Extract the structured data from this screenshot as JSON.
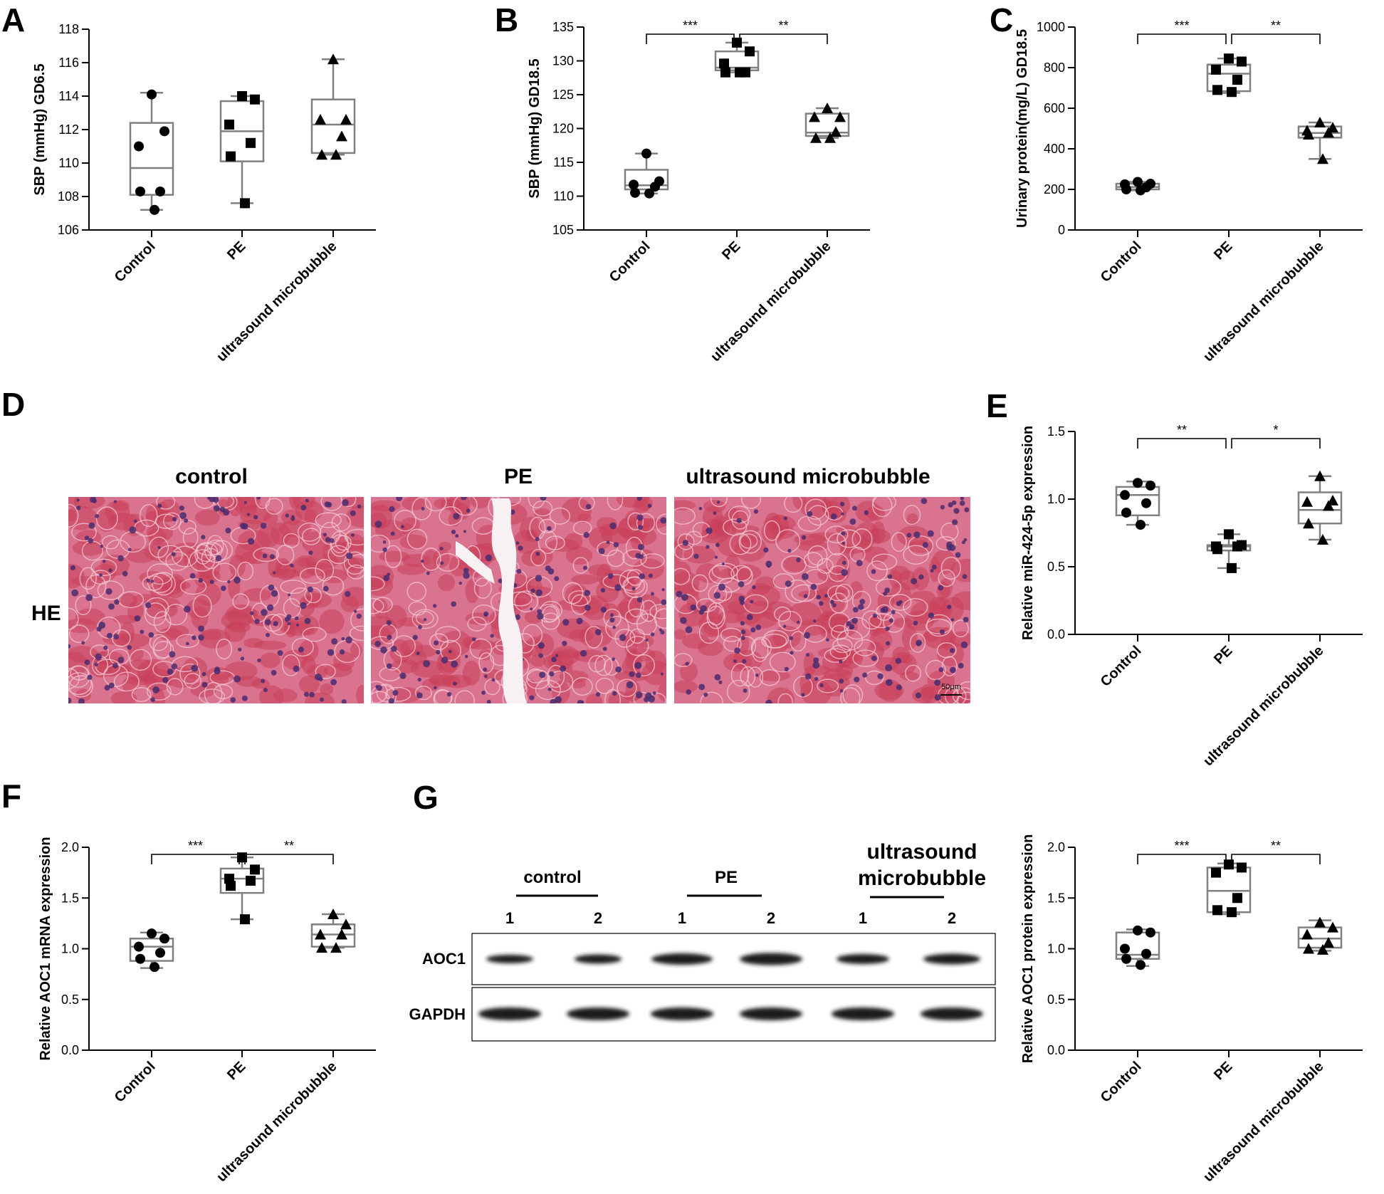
{
  "panel_letters": [
    "A",
    "B",
    "C",
    "D",
    "E",
    "F",
    "G"
  ],
  "chart_data": [
    {
      "panel": "A",
      "type": "box",
      "ylabel": "SBP (mmHg) GD6.5",
      "ylim": [
        106,
        118
      ],
      "yticks": [
        "106",
        "108",
        "110",
        "112",
        "114",
        "116",
        "118"
      ],
      "categories": [
        "Control",
        "PE",
        "ultrasound microbubble"
      ],
      "markers": [
        "circle",
        "square",
        "triangle"
      ],
      "boxes": [
        {
          "min": 107.2,
          "q1": 108.1,
          "median": 109.7,
          "q3": 112.4,
          "max": 114.2
        },
        {
          "min": 107.6,
          "q1": 110.1,
          "median": 111.9,
          "q3": 113.7,
          "max": 114.0
        },
        {
          "min": 110.5,
          "q1": 110.6,
          "median": 112.3,
          "q3": 113.8,
          "max": 116.2
        }
      ],
      "points": [
        [
          114.1,
          111.9,
          111.0,
          108.3,
          108.3,
          107.2
        ],
        [
          114.0,
          113.8,
          112.3,
          111.2,
          110.4,
          107.6
        ],
        [
          116.2,
          112.6,
          112.6,
          111.6,
          110.5,
          110.5
        ]
      ],
      "significance": []
    },
    {
      "panel": "B",
      "type": "box",
      "ylabel": "SBP (mmHg) GD18.5",
      "ylim": [
        105,
        135
      ],
      "yticks": [
        "105",
        "110",
        "115",
        "120",
        "125",
        "130",
        "135"
      ],
      "categories": [
        "Control",
        "PE",
        "ultrasound microbubble"
      ],
      "markers": [
        "circle",
        "square",
        "triangle"
      ],
      "boxes": [
        {
          "min": 110.4,
          "q1": 111.0,
          "median": 111.6,
          "q3": 113.9,
          "max": 116.3
        },
        {
          "min": 128.3,
          "q1": 128.6,
          "median": 129.0,
          "q3": 131.4,
          "max": 132.7
        },
        {
          "min": 118.6,
          "q1": 118.9,
          "median": 119.4,
          "q3": 122.2,
          "max": 123.0
        }
      ],
      "points": [
        [
          116.3,
          112.2,
          111.7,
          111.4,
          110.5,
          110.4
        ],
        [
          132.7,
          131.4,
          129.6,
          128.3,
          128.3,
          128.3
        ],
        [
          123.0,
          121.7,
          121.7,
          119.5,
          118.6,
          118.6
        ]
      ],
      "significance": [
        {
          "from": 0,
          "to": 1,
          "label": "***"
        },
        {
          "from": 1,
          "to": 2,
          "label": "**"
        }
      ]
    },
    {
      "panel": "C",
      "type": "box",
      "ylabel": "Urinary protein(mg/L) GD18.5",
      "ylim": [
        0,
        1000
      ],
      "yticks": [
        "0",
        "200",
        "400",
        "600",
        "800",
        "1000"
      ],
      "categories": [
        "Control",
        "PE",
        "ultrasound microbubble"
      ],
      "markers": [
        "circle",
        "square",
        "triangle"
      ],
      "boxes": [
        {
          "min": 195,
          "q1": 200,
          "median": 212,
          "q3": 228,
          "max": 237
        },
        {
          "min": 675,
          "q1": 684,
          "median": 770,
          "q3": 815,
          "max": 845
        },
        {
          "min": 350,
          "q1": 455,
          "median": 478,
          "q3": 510,
          "max": 530
        }
      ],
      "points": [
        [
          237,
          228,
          225,
          210,
          200,
          195
        ],
        [
          845,
          830,
          790,
          740,
          690,
          680
        ],
        [
          530,
          505,
          490,
          480,
          470,
          350
        ]
      ],
      "significance": [
        {
          "from": 0,
          "to": 1,
          "label": "***"
        },
        {
          "from": 1,
          "to": 2,
          "label": "**"
        }
      ]
    },
    {
      "panel": "E",
      "type": "box",
      "ylabel": "Relative miR-424-5p expression",
      "ylim": [
        0,
        1.5
      ],
      "yticks": [
        "0.0",
        "0.5",
        "1.0",
        "1.5"
      ],
      "categories": [
        "Control",
        "PE",
        "ultrasound microbubble"
      ],
      "markers": [
        "circle",
        "square",
        "triangle"
      ],
      "boxes": [
        {
          "min": 0.81,
          "q1": 0.88,
          "median": 1.03,
          "q3": 1.09,
          "max": 1.13
        },
        {
          "min": 0.49,
          "q1": 0.62,
          "median": 0.65,
          "q3": 0.66,
          "max": 0.74
        },
        {
          "min": 0.7,
          "q1": 0.82,
          "median": 0.92,
          "q3": 1.05,
          "max": 1.17
        }
      ],
      "points": [
        [
          1.12,
          1.1,
          1.03,
          0.97,
          0.9,
          0.81
        ],
        [
          0.74,
          0.66,
          0.65,
          0.65,
          0.63,
          0.49
        ],
        [
          1.17,
          0.99,
          0.98,
          0.95,
          0.82,
          0.7
        ]
      ],
      "significance": [
        {
          "from": 0,
          "to": 1,
          "label": "**"
        },
        {
          "from": 1,
          "to": 2,
          "label": "*"
        }
      ]
    },
    {
      "panel": "F",
      "type": "box",
      "ylabel": "Relative AOC1 mRNA expression",
      "ylim": [
        0,
        2.0
      ],
      "yticks": [
        "0.0",
        "0.5",
        "1.0",
        "1.5",
        "2.0"
      ],
      "categories": [
        "Control",
        "PE",
        "ultrasound microbubble"
      ],
      "markers": [
        "circle",
        "square",
        "triangle"
      ],
      "boxes": [
        {
          "min": 0.81,
          "q1": 0.88,
          "median": 1.02,
          "q3": 1.1,
          "max": 1.16
        },
        {
          "min": 1.29,
          "q1": 1.55,
          "median": 1.69,
          "q3": 1.79,
          "max": 1.9
        },
        {
          "min": 1.01,
          "q1": 1.02,
          "median": 1.14,
          "q3": 1.24,
          "max": 1.34
        }
      ],
      "points": [
        [
          1.15,
          1.1,
          1.02,
          0.96,
          0.9,
          0.82
        ],
        [
          1.9,
          1.78,
          1.69,
          1.67,
          1.62,
          1.29
        ],
        [
          1.34,
          1.24,
          1.14,
          1.14,
          1.01,
          1.01
        ]
      ],
      "significance": [
        {
          "from": 0,
          "to": 1,
          "label": "***"
        },
        {
          "from": 1,
          "to": 2,
          "label": "**"
        }
      ]
    },
    {
      "panel": "G",
      "type": "box",
      "ylabel": "Relative AOC1 protein expression",
      "ylim": [
        0,
        2.0
      ],
      "yticks": [
        "0.0",
        "0.5",
        "1.0",
        "1.5",
        "2.0"
      ],
      "categories": [
        "Control",
        "PE",
        "ultrasound microbubble"
      ],
      "markers": [
        "circle",
        "square",
        "triangle"
      ],
      "boxes": [
        {
          "min": 0.83,
          "q1": 0.9,
          "median": 0.94,
          "q3": 1.16,
          "max": 1.19
        },
        {
          "min": 1.34,
          "q1": 1.36,
          "median": 1.57,
          "q3": 1.8,
          "max": 1.84
        },
        {
          "min": 0.98,
          "q1": 1.01,
          "median": 1.1,
          "q3": 1.21,
          "max": 1.28
        }
      ],
      "points": [
        [
          1.18,
          1.16,
          1.0,
          0.95,
          0.9,
          0.84
        ],
        [
          1.83,
          1.8,
          1.75,
          1.5,
          1.38,
          1.36
        ],
        [
          1.26,
          1.21,
          1.14,
          1.06,
          1.0,
          0.99
        ]
      ],
      "significance": [
        {
          "from": 0,
          "to": 1,
          "label": "***"
        },
        {
          "from": 1,
          "to": 2,
          "label": "**"
        }
      ]
    }
  ],
  "histology": {
    "titles": [
      "control",
      "PE",
      "ultrasound microbubble"
    ],
    "row_label": "HE",
    "scale_bar": "50μm"
  },
  "western_blot": {
    "groups": [
      "control",
      "PE",
      "ultrasound microbubble"
    ],
    "lanes": [
      "1",
      "2",
      "1",
      "2",
      "1",
      "2"
    ],
    "rows": [
      "AOC1",
      "GAPDH"
    ]
  },
  "colors": {
    "box": "#808080",
    "marker": "#000000",
    "he_background": "#d9738f",
    "he_blood": "#c8405a",
    "he_nuclei": "#4a2a6e",
    "blot_band": "#1e1e1e"
  }
}
